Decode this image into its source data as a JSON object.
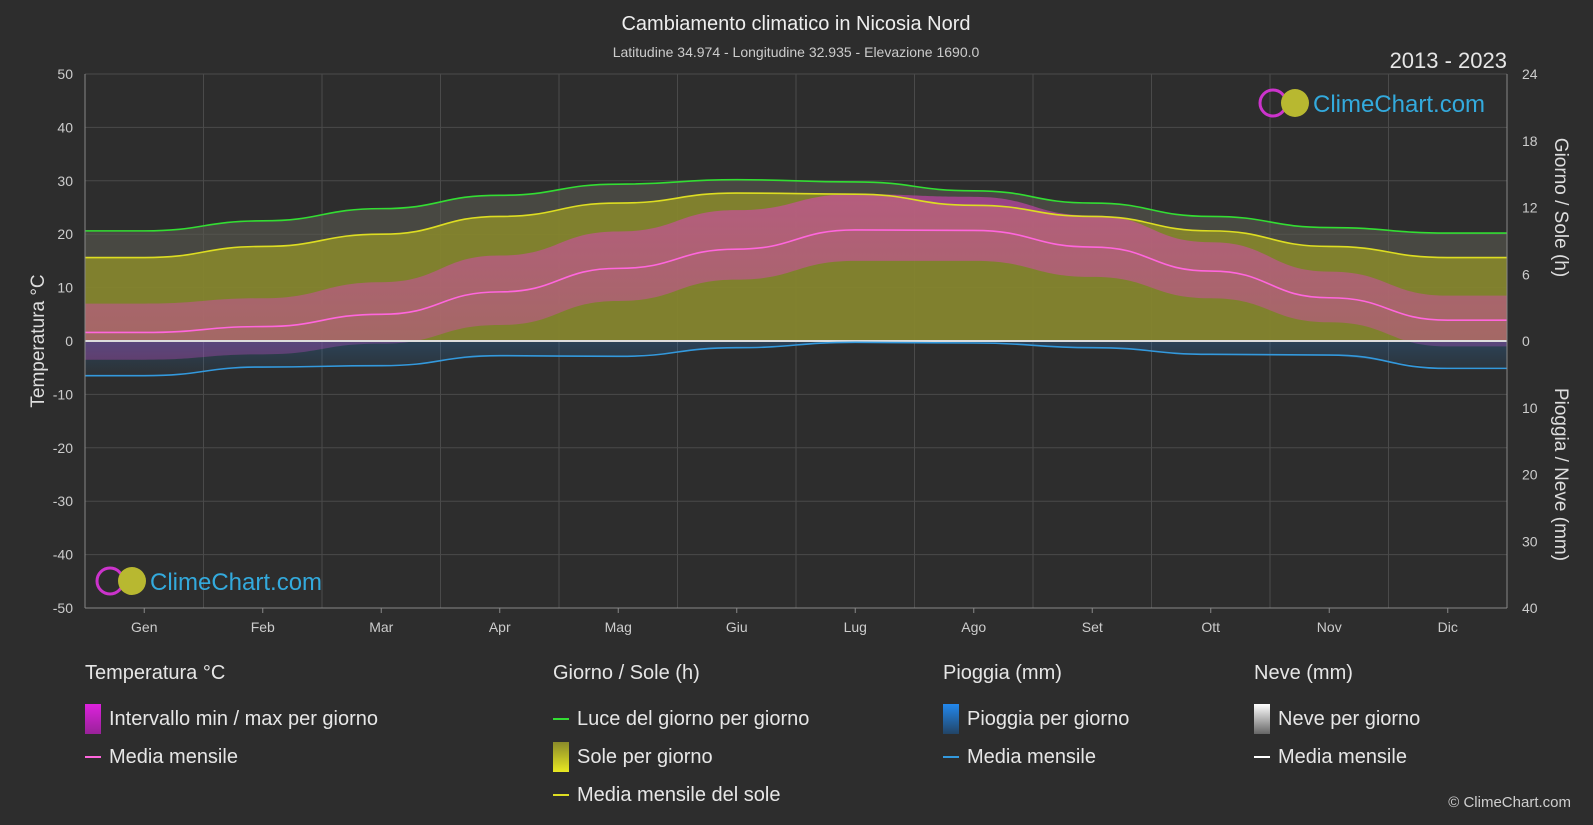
{
  "chart_data": {
    "type": "area",
    "title": "Cambiamento climatico in Nicosia Nord",
    "subtitle": "Latitudine 34.974 - Longitudine 32.935 - Elevazione 1690.0",
    "period": "2013 - 2023",
    "categories": [
      "Gen",
      "Feb",
      "Mar",
      "Apr",
      "Mag",
      "Giu",
      "Lug",
      "Ago",
      "Set",
      "Ott",
      "Nov",
      "Dic"
    ],
    "y_left": {
      "label": "Temperatura °C",
      "range": [
        -50,
        50
      ],
      "ticks": [
        50,
        40,
        30,
        20,
        10,
        0,
        -10,
        -20,
        -30,
        -40,
        -50
      ]
    },
    "y_right_top": {
      "label": "Giorno / Sole (h)",
      "range": [
        0,
        24
      ],
      "ticks": [
        24,
        18,
        12,
        6,
        0
      ]
    },
    "y_right_bottom": {
      "label": "Pioggia / Neve (mm)",
      "range": [
        0,
        40
      ],
      "ticks": [
        0,
        10,
        20,
        30,
        40
      ]
    },
    "series": [
      {
        "name": "Luce del giorno per giorno",
        "unit": "h",
        "color": "#33dd33",
        "values": [
          9.9,
          10.8,
          11.9,
          13.1,
          14.1,
          14.5,
          14.3,
          13.5,
          12.4,
          11.2,
          10.2,
          9.7
        ]
      },
      {
        "name": "Media mensile del sole",
        "unit": "h",
        "color": "#dddd22",
        "values": [
          7.5,
          8.5,
          9.6,
          11.2,
          12.4,
          13.3,
          13.2,
          12.2,
          11.2,
          9.9,
          8.5,
          7.5
        ]
      },
      {
        "name": "Media mensile",
        "group": "Temperatura °C",
        "unit": "°C",
        "color": "#ff66dd",
        "values": [
          1.6,
          2.7,
          5.0,
          9.2,
          13.6,
          17.2,
          20.8,
          20.7,
          17.6,
          13.1,
          8.1,
          3.9
        ]
      },
      {
        "name": "Media mensile",
        "group": "Pioggia (mm)",
        "unit": "mm",
        "color": "#3399dd",
        "values": [
          5.2,
          3.9,
          3.7,
          2.2,
          2.3,
          1.0,
          0.2,
          0.3,
          1.0,
          2.0,
          2.1,
          4.1
        ]
      },
      {
        "name": "Intervallo min / max per giorno",
        "unit": "°C",
        "min": [
          -3.5,
          -2.5,
          -0.5,
          3.0,
          7.5,
          11.5,
          15.0,
          15.0,
          12.0,
          8.0,
          3.5,
          -1.0
        ],
        "max": [
          7.0,
          8.0,
          11.0,
          16.0,
          20.5,
          24.5,
          27.5,
          27.0,
          23.5,
          18.5,
          13.0,
          8.5
        ]
      }
    ]
  },
  "legend": {
    "groups": [
      {
        "title": "Temperatura °C",
        "items": [
          {
            "label": "Intervallo min / max per giorno",
            "swatch": "box",
            "color": "#dd22dd"
          },
          {
            "label": "Media mensile",
            "swatch": "line",
            "color": "#ff66dd"
          }
        ]
      },
      {
        "title": "Giorno / Sole (h)",
        "items": [
          {
            "label": "Luce del giorno per giorno",
            "swatch": "line",
            "color": "#33dd33"
          },
          {
            "label": "Sole per giorno",
            "swatch": "box",
            "color": "#cccc22"
          },
          {
            "label": "Media mensile del sole",
            "swatch": "line",
            "color": "#dddd22"
          }
        ]
      },
      {
        "title": "Pioggia (mm)",
        "items": [
          {
            "label": "Pioggia per giorno",
            "swatch": "box",
            "color": "#2277cc"
          },
          {
            "label": "Media mensile",
            "swatch": "line",
            "color": "#3399dd"
          }
        ]
      },
      {
        "title": "Neve (mm)",
        "items": [
          {
            "label": "Neve per giorno",
            "swatch": "box",
            "color": "#dddddd"
          },
          {
            "label": "Media mensile",
            "swatch": "line",
            "color": "#ffffff"
          }
        ]
      }
    ]
  },
  "brand": {
    "name": "ClimeChart.com",
    "copyright": "© ClimeChart.com"
  }
}
